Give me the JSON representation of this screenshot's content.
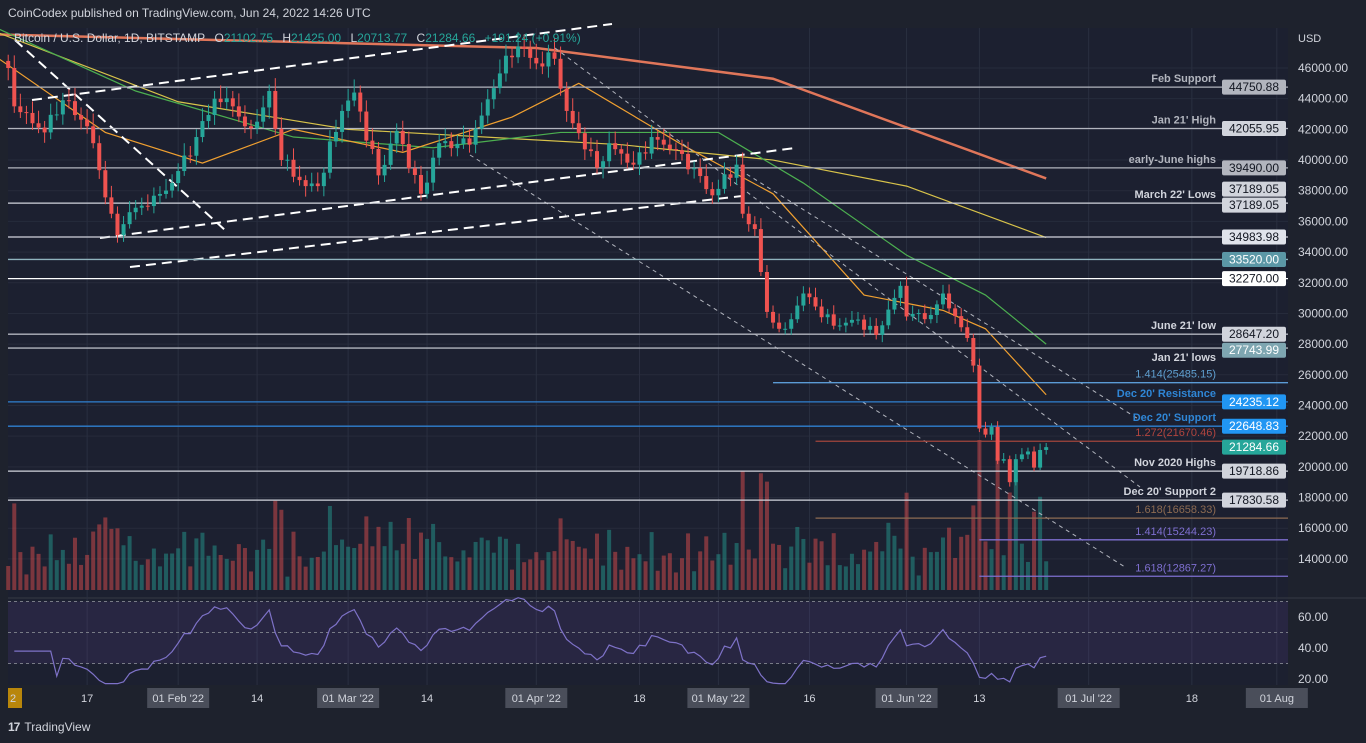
{
  "header": {
    "published": "CoinCodex published on TradingView.com, Jun 24, 2022 14:26 UTC"
  },
  "legend": {
    "symbol": "Bitcoin / U.S. Dollar, 1D, BITSTAMP",
    "open_label": "O",
    "open": "21102.75",
    "high_label": "H",
    "high": "21425.00",
    "low_label": "L",
    "low": "20713.77",
    "close_label": "C",
    "close": "21284.66",
    "change": "+191.24 (+0.91%)"
  },
  "footer": {
    "brand": "TradingView",
    "logo_icon": "tradingview-logo-icon"
  },
  "colors": {
    "up": "#26a69a",
    "down": "#ef5350",
    "background": "#1e222d",
    "rsi": "#7e72c8"
  },
  "chart_data": {
    "type": "candlestick",
    "currency_label": "USD",
    "ylim": [
      11500,
      49500
    ],
    "y_ticks": [
      46000,
      44000,
      42000,
      40000,
      38000,
      36000,
      34000,
      32000,
      30000,
      28000,
      26000,
      24000,
      22000,
      20000,
      18000,
      16000,
      14000
    ],
    "x_ticks": [
      {
        "date": "2022-01-02",
        "label": "2"
      },
      {
        "date": "2022-01-17",
        "label": "17"
      },
      {
        "date": "2022-02-01",
        "label": "01 Feb '22"
      },
      {
        "date": "2022-02-14",
        "label": "14"
      },
      {
        "date": "2022-03-01",
        "label": "01 Mar '22"
      },
      {
        "date": "2022-03-14",
        "label": "14"
      },
      {
        "date": "2022-04-01",
        "label": "01 Apr '22"
      },
      {
        "date": "2022-04-18",
        "label": "18"
      },
      {
        "date": "2022-05-01",
        "label": "01 May '22"
      },
      {
        "date": "2022-05-16",
        "label": "16"
      },
      {
        "date": "2022-06-01",
        "label": "01 Jun '22"
      },
      {
        "date": "2022-06-13",
        "label": "13"
      },
      {
        "date": "2022-07-01",
        "label": "01 Jul '22"
      },
      {
        "date": "2022-07-18",
        "label": "18"
      },
      {
        "date": "2022-08-01",
        "label": "01 Aug"
      }
    ],
    "closes": [
      [
        "2022-01-04",
        46000
      ],
      [
        "2022-01-05",
        43500
      ],
      [
        "2022-01-10",
        41800
      ],
      [
        "2022-01-13",
        43900
      ],
      [
        "2022-01-17",
        42200
      ],
      [
        "2022-01-21",
        36500
      ],
      [
        "2022-01-22",
        35100
      ],
      [
        "2022-01-24",
        36600
      ],
      [
        "2022-01-27",
        37000
      ],
      [
        "2022-01-31",
        38500
      ],
      [
        "2022-02-04",
        41500
      ],
      [
        "2022-02-07",
        44000
      ],
      [
        "2022-02-10",
        43500
      ],
      [
        "2022-02-12",
        42200
      ],
      [
        "2022-02-14",
        42500
      ],
      [
        "2022-02-16",
        44500
      ],
      [
        "2022-02-18",
        40000
      ],
      [
        "2022-02-22",
        38300
      ],
      [
        "2022-02-24",
        38300
      ],
      [
        "2022-02-28",
        43200
      ],
      [
        "2022-03-02",
        44400
      ],
      [
        "2022-03-06",
        39000
      ],
      [
        "2022-03-09",
        41900
      ],
      [
        "2022-03-13",
        37800
      ],
      [
        "2022-03-16",
        41100
      ],
      [
        "2022-03-21",
        41000
      ],
      [
        "2022-03-23",
        42900
      ],
      [
        "2022-03-27",
        46800
      ],
      [
        "2022-03-29",
        47400
      ],
      [
        "2022-04-01",
        46300
      ],
      [
        "2022-04-04",
        46600
      ],
      [
        "2022-04-06",
        43200
      ],
      [
        "2022-04-11",
        39500
      ],
      [
        "2022-04-13",
        41100
      ],
      [
        "2022-04-17",
        39700
      ],
      [
        "2022-04-20",
        41500
      ],
      [
        "2022-04-25",
        40400
      ],
      [
        "2022-04-30",
        37700
      ],
      [
        "2022-05-04",
        39700
      ],
      [
        "2022-05-05",
        36500
      ],
      [
        "2022-05-07",
        35500
      ],
      [
        "2022-05-09",
        30100
      ],
      [
        "2022-05-11",
        29000
      ],
      [
        "2022-05-12",
        29000
      ],
      [
        "2022-05-15",
        31300
      ],
      [
        "2022-05-20",
        29200
      ],
      [
        "2022-05-24",
        29600
      ],
      [
        "2022-05-27",
        28600
      ],
      [
        "2022-05-31",
        31800
      ],
      [
        "2022-06-01",
        29800
      ],
      [
        "2022-06-05",
        29900
      ],
      [
        "2022-06-07",
        31300
      ],
      [
        "2022-06-10",
        29100
      ],
      [
        "2022-06-11",
        28400
      ],
      [
        "2022-06-12",
        26600
      ],
      [
        "2022-06-13",
        22500
      ],
      [
        "2022-06-14",
        22100
      ],
      [
        "2022-06-15",
        22600
      ],
      [
        "2022-06-16",
        20400
      ],
      [
        "2022-06-17",
        20500
      ],
      [
        "2022-06-18",
        19000
      ],
      [
        "2022-06-19",
        20500
      ],
      [
        "2022-06-21",
        21000
      ],
      [
        "2022-06-22",
        19950
      ],
      [
        "2022-06-23",
        21100
      ],
      [
        "2022-06-24",
        21284.66
      ]
    ],
    "moving_averages": [
      {
        "color": "#e0765a",
        "points": [
          [
            "2022-01-01",
            48200
          ],
          [
            "2022-04-01",
            47300
          ],
          [
            "2022-05-10",
            45300
          ],
          [
            "2022-06-24",
            38800
          ]
        ]
      },
      {
        "color": "#d8c34a",
        "points": [
          [
            "2022-01-01",
            48500
          ],
          [
            "2022-02-01",
            43800
          ],
          [
            "2022-03-01",
            42000
          ],
          [
            "2022-04-15",
            41000
          ],
          [
            "2022-05-10",
            40000
          ],
          [
            "2022-06-01",
            38300
          ],
          [
            "2022-06-24",
            34950
          ]
        ]
      },
      {
        "color": "#4caf50",
        "points": [
          [
            "2022-01-01",
            48800
          ],
          [
            "2022-01-25",
            44500
          ],
          [
            "2022-02-20",
            41500
          ],
          [
            "2022-03-15",
            40800
          ],
          [
            "2022-04-05",
            41800
          ],
          [
            "2022-05-01",
            41800
          ],
          [
            "2022-05-15",
            38500
          ],
          [
            "2022-06-01",
            33800
          ],
          [
            "2022-06-14",
            31200
          ],
          [
            "2022-06-24",
            28000
          ]
        ]
      },
      {
        "color": "#f0a030",
        "points": [
          [
            "2022-01-01",
            47000
          ],
          [
            "2022-01-20",
            41800
          ],
          [
            "2022-02-05",
            39800
          ],
          [
            "2022-02-20",
            42000
          ],
          [
            "2022-03-10",
            40500
          ],
          [
            "2022-03-28",
            42800
          ],
          [
            "2022-04-08",
            45000
          ],
          [
            "2022-04-25",
            41000
          ],
          [
            "2022-05-10",
            37800
          ],
          [
            "2022-05-25",
            31200
          ],
          [
            "2022-06-07",
            30200
          ],
          [
            "2022-06-14",
            29000
          ],
          [
            "2022-06-24",
            24700
          ]
        ]
      }
    ],
    "levels": [
      {
        "price": 44750.88,
        "tag": "44750.88",
        "label": "Feb Support",
        "line": "#b2b5be",
        "tag_bg": "#b2b5be",
        "tag_fg": "#131722",
        "label_fg": "#b2b5be"
      },
      {
        "price": 42055.95,
        "tag": "42055.95",
        "label": "Jan 21' High",
        "line": "#b2b5be",
        "tag_bg": "#d1d4dc",
        "tag_fg": "#131722",
        "label_fg": "#b2b5be"
      },
      {
        "price": 39490.0,
        "tag": "39490.00",
        "label": "early-June highs",
        "line": "#b2b5be",
        "tag_bg": "#b2b5be",
        "tag_fg": "#131722",
        "label_fg": "#b2b5be"
      },
      {
        "price": 38100,
        "tag": "37189.05",
        "label": "",
        "line": "",
        "tag_bg": "#d1d4dc",
        "tag_fg": "#131722",
        "label_fg": ""
      },
      {
        "price": 37189.05,
        "tag": "37189.05",
        "label": "March 22' Lows",
        "line": "#d1d4dc",
        "tag_bg": "#d1d4dc",
        "tag_fg": "#131722",
        "label_fg": "#d1d4dc"
      },
      {
        "price": 34983.98,
        "tag": "34983.98",
        "label": "",
        "line": "#d1d4dc",
        "tag_bg": "#e0e3eb",
        "tag_fg": "#131722",
        "label_fg": ""
      },
      {
        "price": 33520.0,
        "tag": "33520.00",
        "label": "",
        "line": "#8fb3bd",
        "tag_bg": "#5b97a6",
        "tag_fg": "#ffffff",
        "label_fg": ""
      },
      {
        "price": 32270.0,
        "tag": "32270.00",
        "label": "",
        "line": "#ffffff",
        "tag_bg": "#ffffff",
        "tag_fg": "#131722",
        "label_fg": ""
      },
      {
        "price": 28647.2,
        "tag": "28647.20",
        "label": "June 21' low",
        "line": "#b2b5be",
        "tag_bg": "#d1d4dc",
        "tag_fg": "#131722",
        "label_fg": "#d1d4dc"
      },
      {
        "price": 27743.99,
        "tag": "27743.99",
        "label": "Jan 21' lows",
        "line": "#b2b5be",
        "tag_bg": "#7ea6b1",
        "tag_fg": "#ffffff",
        "label_fg": "#d1d4dc"
      },
      {
        "price": 25485.15,
        "tag": "",
        "label": "1.414(25485.15)",
        "line": "#5b9bd5",
        "start": "2022-05-10",
        "tag_bg": "",
        "tag_fg": "",
        "label_fg": "#5f9fd0"
      },
      {
        "price": 24235.12,
        "tag": "24235.12",
        "label": "Dec 20' Resistance",
        "line": "#2f80d0",
        "tag_bg": "#2196f3",
        "tag_fg": "#ffffff",
        "label_fg": "#2f86d6"
      },
      {
        "price": 22648.83,
        "tag": "22648.83",
        "label": "Dec 20' Support",
        "line": "#2f80d0",
        "tag_bg": "#2196f3",
        "tag_fg": "#ffffff",
        "label_fg": "#2f86d6"
      },
      {
        "price": 21670.46,
        "tag": "",
        "label": "1.272(21670.46)",
        "line": "#a0443c",
        "start": "2022-05-17",
        "tag_bg": "",
        "tag_fg": "",
        "label_fg": "#b2453f"
      },
      {
        "price": 21284.66,
        "tag": "21284.66",
        "label": "",
        "line": "",
        "tag_bg": "#26a69a",
        "tag_fg": "#ffffff",
        "label_fg": ""
      },
      {
        "price": 19718.86,
        "tag": "19718.86",
        "label": "Nov 2020 Highs",
        "line": "#d1d4dc",
        "tag_bg": "#d1d4dc",
        "tag_fg": "#131722",
        "label_fg": "#d1d4dc"
      },
      {
        "price": 17830.58,
        "tag": "17830.58",
        "label": "Dec 20' Support 2",
        "line": "#d1d4dc",
        "tag_bg": "#d1d4dc",
        "tag_fg": "#131722",
        "label_fg": "#d1d4dc"
      },
      {
        "price": 16658.33,
        "tag": "",
        "label": "1.618(16658.33)",
        "line": "#8d6b52",
        "start": "2022-05-17",
        "tag_bg": "",
        "tag_fg": "",
        "label_fg": "#8d6b52"
      },
      {
        "price": 15244.23,
        "tag": "",
        "label": "1.414(15244.23)",
        "line": "#7e6fd0",
        "start": "2022-06-13",
        "tag_bg": "",
        "tag_fg": "",
        "label_fg": "#7e6fd0"
      },
      {
        "price": 12867.27,
        "tag": "",
        "label": "1.618(12867.27)",
        "line": "#7e6fd0",
        "start": "2022-06-13",
        "tag_bg": "",
        "tag_fg": "",
        "label_fg": "#7e6fd0"
      }
    ],
    "rsi": {
      "ylim": [
        15,
        75
      ],
      "ticks": [
        "60.00",
        "40.00",
        "20.00"
      ],
      "tick_values": [
        60,
        40,
        20
      ],
      "bands": [
        30,
        50,
        70
      ]
    }
  }
}
